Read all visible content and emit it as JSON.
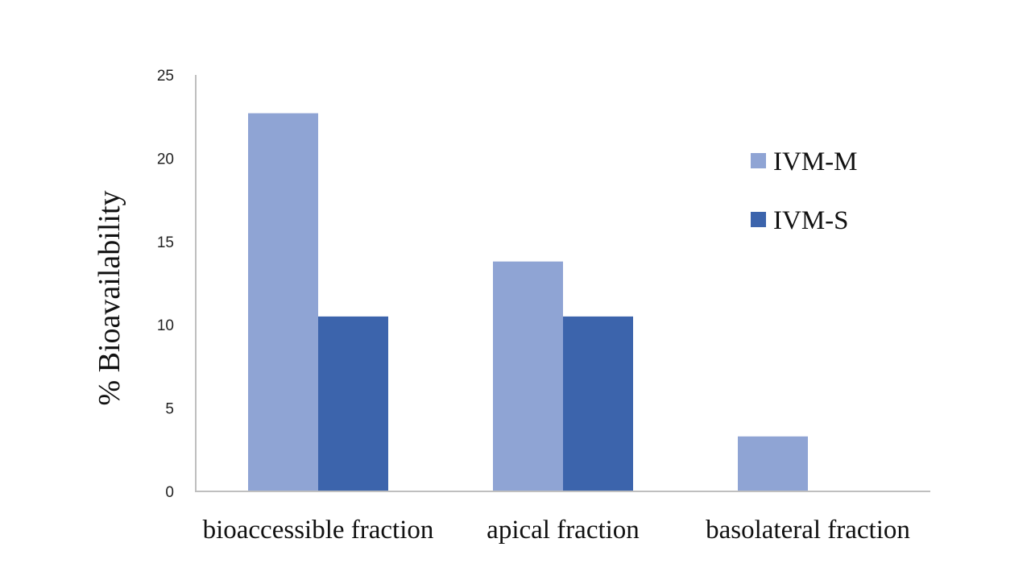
{
  "chart_data": {
    "type": "bar",
    "title": "",
    "xlabel": "",
    "ylabel": "% Bioavailability",
    "ylim": [
      0,
      25
    ],
    "yticks": [
      0,
      5,
      10,
      15,
      20,
      25
    ],
    "grid": false,
    "legend_placement": "top-right",
    "categories": [
      "bioaccessible fraction",
      "apical fraction",
      "basolateral fraction"
    ],
    "series": [
      {
        "name": "IVM-M",
        "color": "#8FA4D4",
        "values": [
          22.7,
          13.8,
          3.3
        ]
      },
      {
        "name": "IVM-S",
        "color": "#3C64AC",
        "values": [
          10.5,
          10.5,
          0
        ]
      }
    ]
  }
}
